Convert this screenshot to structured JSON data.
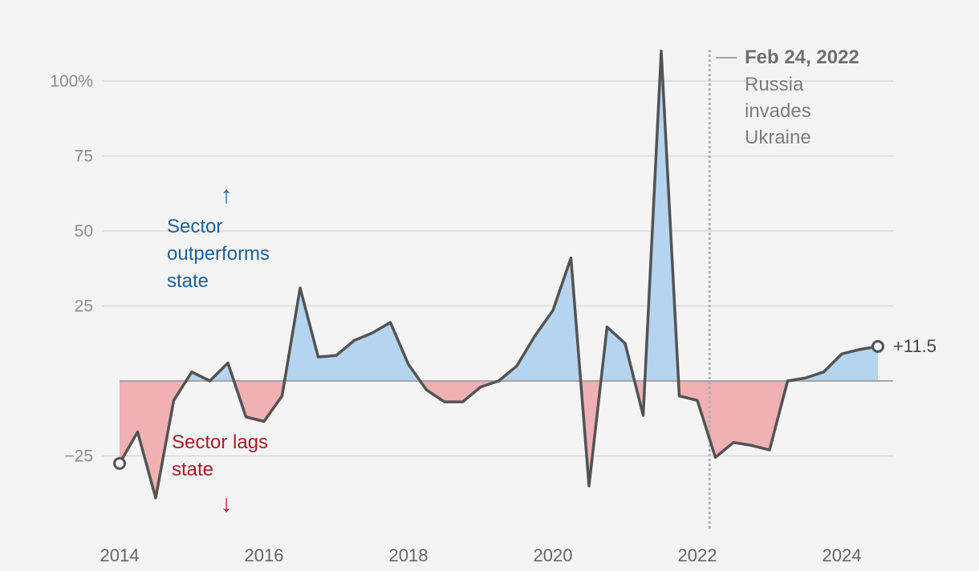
{
  "chart_data": {
    "type": "area",
    "title": "",
    "xlabel": "",
    "ylabel": "",
    "y_unit_label": "100%",
    "ylim": [
      -45,
      112
    ],
    "xlim": [
      2014,
      2024.5
    ],
    "yticks": [
      {
        "value": 100,
        "label": "100%"
      },
      {
        "value": 75,
        "label": "75"
      },
      {
        "value": 50,
        "label": "50"
      },
      {
        "value": 25,
        "label": "25"
      },
      {
        "value": -25,
        "label": "−25"
      }
    ],
    "xticks": [
      "2014",
      "2016",
      "2018",
      "2020",
      "2022",
      "2024"
    ],
    "baseline": 0,
    "grid": true,
    "series": [
      {
        "x": [
          2014.0,
          2014.25,
          2014.5,
          2014.75,
          2015.0,
          2015.25,
          2015.5,
          2015.75,
          2016.0,
          2016.25,
          2016.5,
          2016.75,
          2017.0,
          2017.25,
          2017.5,
          2017.75,
          2018.0,
          2018.25,
          2018.5,
          2018.75,
          2019.0,
          2019.25,
          2019.5,
          2019.75,
          2020.0,
          2020.25,
          2020.5,
          2020.75,
          2021.0,
          2021.25,
          2021.5,
          2021.75,
          2022.0,
          2022.25,
          2022.5,
          2022.75,
          2023.0,
          2023.25,
          2023.5,
          2023.75,
          2024.0,
          2024.25,
          2024.5
        ],
        "values": [
          -27.5,
          -17,
          -39,
          -6.5,
          3,
          0,
          6,
          -12,
          -13.5,
          -5,
          31,
          8,
          8.5,
          13.5,
          16,
          19.5,
          5.5,
          -3,
          -7,
          -7,
          -2,
          0,
          5,
          15,
          23.5,
          41,
          -35,
          18,
          12.5,
          -11.5,
          110,
          -5,
          -6.5,
          -25.5,
          -20.5,
          -21.5,
          -23,
          0,
          1,
          3,
          9,
          10.5,
          11.5
        ]
      }
    ],
    "positive_fill": "#b4d4ef",
    "negative_fill": "#efb1b3",
    "line_color": "#535353",
    "end_label": "+11.5",
    "annotations": [
      {
        "kind": "vline",
        "x": 2022.17,
        "date": "Feb 24, 2022",
        "text_lines": [
          "Russia",
          "invades",
          "Ukraine"
        ]
      },
      {
        "kind": "region-label",
        "text_lines": [
          "Sector",
          "outperforms",
          "state"
        ],
        "arrow": "↑",
        "color": "#1f5f99"
      },
      {
        "kind": "region-label",
        "text_lines": [
          "Sector lags",
          "state"
        ],
        "arrow": "↓",
        "color": "#a51d24"
      }
    ]
  }
}
